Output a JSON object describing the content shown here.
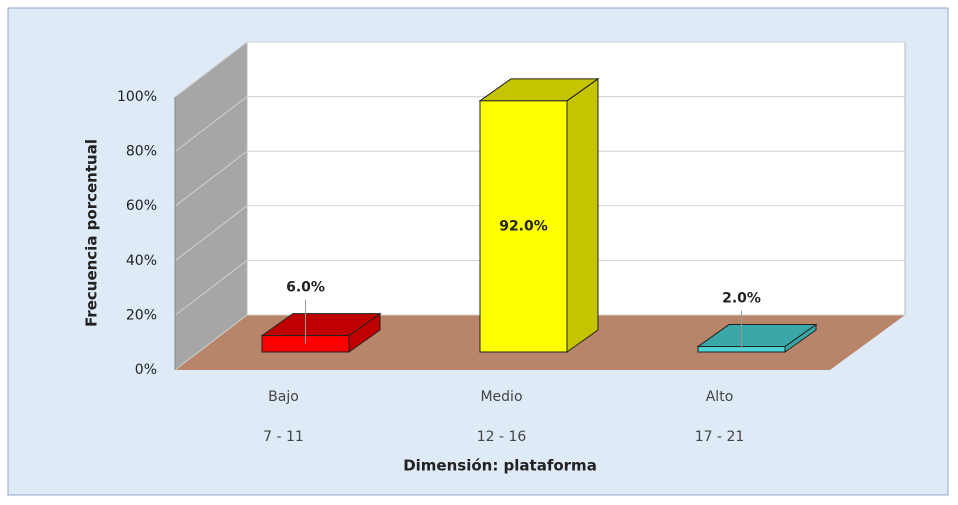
{
  "chart_data": {
    "type": "bar3d",
    "categories": [
      [
        "Bajo",
        "7 - 11"
      ],
      [
        "Medio",
        "12 - 16"
      ],
      [
        "Alto",
        "17 - 21"
      ]
    ],
    "values": [
      6,
      92,
      2
    ],
    "value_labels": [
      "6.0%",
      "92.0%",
      "2.0%"
    ],
    "colors": [
      "#ff0000",
      "#ffff00",
      "#4fd3d3"
    ],
    "side_colors": [
      "#c00000",
      "#c4c400",
      "#3aa8a8"
    ],
    "x_label": "Dimensión: plataforma",
    "y_label": "Frecuencia porcentual",
    "ylim": [
      0,
      100
    ],
    "yticks": [
      {
        "value": 0,
        "label": "0%"
      },
      {
        "value": 20,
        "label": "20%"
      },
      {
        "value": 40,
        "label": "40%"
      },
      {
        "value": 60,
        "label": "60%"
      },
      {
        "value": 80,
        "label": "80%"
      },
      {
        "value": 100,
        "label": "100%"
      }
    ],
    "grid": true
  }
}
